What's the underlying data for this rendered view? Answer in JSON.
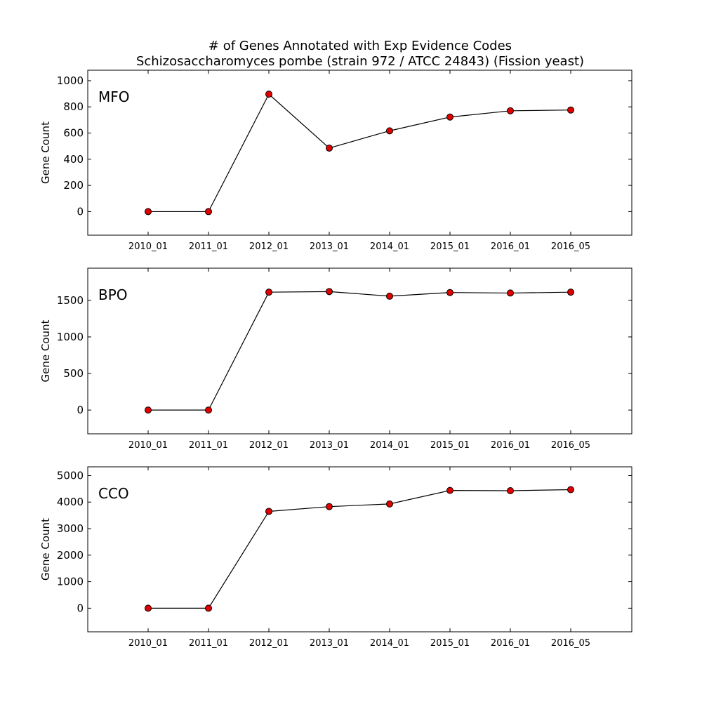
{
  "title_line1": "# of Genes Annotated with Exp Evidence Codes",
  "title_line2": "Schizosaccharomyces pombe (strain 972 / ATCC 24843) (Fission yeast)",
  "colors": {
    "marker_fill": "#e00000",
    "line": "#000000"
  },
  "chart_data": [
    {
      "type": "line",
      "panel_label": "MFO",
      "ylabel": "Gene Count",
      "categories": [
        "2010_01",
        "2011_01",
        "2012_01",
        "2013_01",
        "2014_01",
        "2015_01",
        "2016_01",
        "2016_05"
      ],
      "values": [
        0,
        0,
        897,
        485,
        617,
        722,
        770,
        776
      ],
      "ylim": [
        -180,
        1080
      ],
      "yticks": [
        0,
        200,
        400,
        600,
        800,
        1000
      ],
      "grid": false
    },
    {
      "type": "line",
      "panel_label": "BPO",
      "ylabel": "Gene Count",
      "categories": [
        "2010_01",
        "2011_01",
        "2012_01",
        "2013_01",
        "2014_01",
        "2015_01",
        "2016_01",
        "2016_05"
      ],
      "values": [
        0,
        0,
        1612,
        1620,
        1557,
        1607,
        1600,
        1612
      ],
      "ylim": [
        -325,
        1940
      ],
      "yticks": [
        0,
        500,
        1000,
        1500
      ],
      "grid": false
    },
    {
      "type": "line",
      "panel_label": "CCO",
      "ylabel": "Gene Count",
      "categories": [
        "2010_01",
        "2011_01",
        "2012_01",
        "2013_01",
        "2014_01",
        "2015_01",
        "2016_01",
        "2016_05"
      ],
      "values": [
        0,
        0,
        3650,
        3830,
        3930,
        4440,
        4430,
        4470
      ],
      "ylim": [
        -890,
        5330
      ],
      "yticks": [
        0,
        1000,
        2000,
        3000,
        4000,
        5000
      ],
      "grid": false
    }
  ]
}
